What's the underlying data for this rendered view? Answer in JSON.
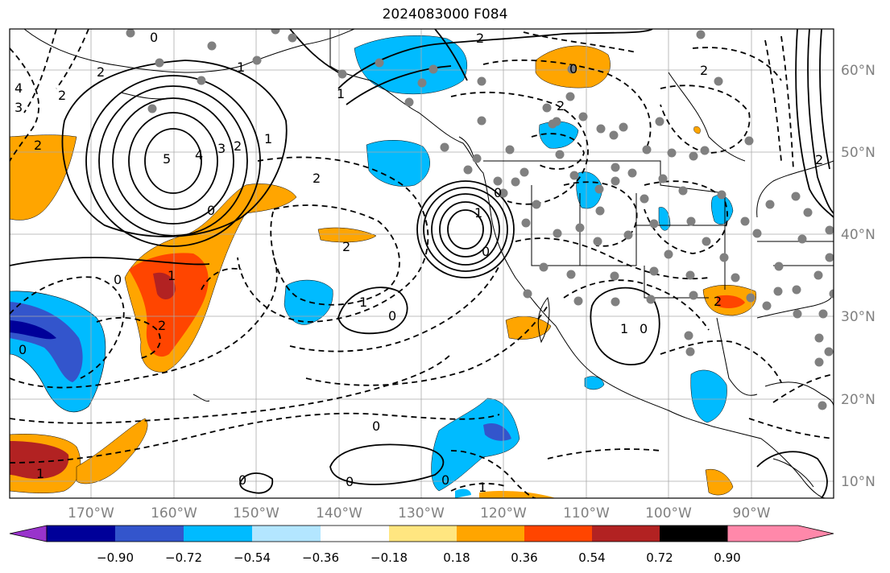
{
  "title": "2024083000 F084",
  "longitude_ticks": [
    "170°W",
    "160°W",
    "150°W",
    "140°W",
    "130°W",
    "120°W",
    "110°W",
    "100°W",
    "90°W"
  ],
  "latitude_ticks": [
    "60°N",
    "50°N",
    "40°N",
    "30°N",
    "20°N",
    "10°N"
  ],
  "colorbar": {
    "labels": [
      "−0.90",
      "−0.72",
      "−0.54",
      "−0.36",
      "−0.18",
      "0.18",
      "0.36",
      "0.54",
      "0.72",
      "0.90"
    ],
    "colors": [
      "#9933cc",
      "#000099",
      "#3355cc",
      "#00bbff",
      "#b3e6ff",
      "#ffffff",
      "#ffe680",
      "#ffa500",
      "#ff4500",
      "#b22222",
      "#ff88aa"
    ]
  },
  "contour_labels": [
    "0",
    "2",
    "4",
    "3",
    "2",
    "2",
    "5",
    "4",
    "3",
    "2",
    "1",
    "0",
    "2",
    "1",
    "2",
    "1",
    "2",
    "0",
    "0",
    "2",
    "1",
    "0",
    "1",
    "0",
    "0",
    "2",
    "0",
    "1",
    "0",
    "1",
    "0",
    "0",
    "2",
    "2",
    "1",
    "0",
    "1",
    "0",
    "2"
  ],
  "colors": {
    "land_outline": "#000000",
    "contour": "#000000",
    "grid": "#aaaaaa",
    "station_dot": "#808080"
  }
}
